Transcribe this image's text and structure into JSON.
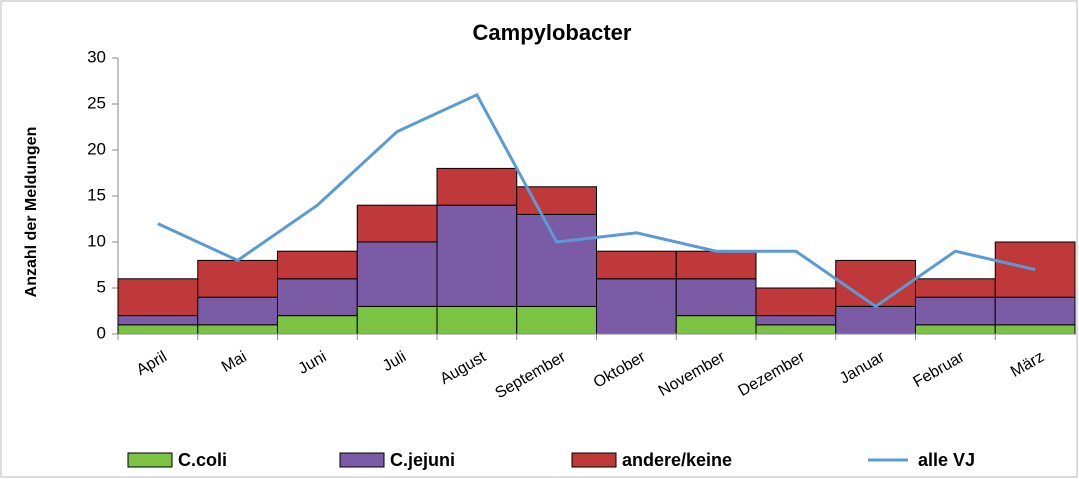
{
  "chart_data": {
    "type": "bar",
    "stacked": true,
    "title": "Campylobacter",
    "ylabel": "Anzahl der Meldungen",
    "categories": [
      "April",
      "Mai",
      "Juni",
      "Juli",
      "August",
      "September",
      "Oktober",
      "November",
      "Dezember",
      "Januar",
      "Februar",
      "März"
    ],
    "series": [
      {
        "name": "C.coli",
        "color": "#7cc243",
        "values": [
          1,
          1,
          2,
          3,
          3,
          3,
          0,
          2,
          1,
          0,
          1,
          1
        ]
      },
      {
        "name": "C.jejuni",
        "color": "#7b5ba6",
        "values": [
          1,
          3,
          4,
          7,
          11,
          10,
          6,
          4,
          1,
          3,
          3,
          3
        ]
      },
      {
        "name": "andere/keine",
        "color": "#c0393a",
        "values": [
          4,
          4,
          3,
          4,
          4,
          3,
          3,
          3,
          3,
          5,
          2,
          6
        ]
      },
      {
        "name": "alle VJ",
        "color": "#5b9bd5",
        "type": "line",
        "values": [
          12,
          8,
          14,
          22,
          26,
          10,
          11,
          9,
          9,
          3,
          9,
          7
        ]
      }
    ],
    "ylim": [
      0,
      30
    ],
    "yticks": [
      0,
      5,
      10,
      15,
      20,
      25,
      30
    ],
    "legend": "bottom"
  }
}
